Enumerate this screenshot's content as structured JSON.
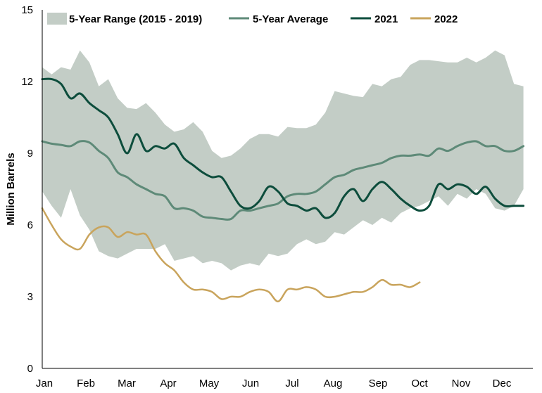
{
  "chart_data": {
    "type": "line",
    "title": "",
    "xlabel": "",
    "ylabel": "Million Barrels",
    "ylim": [
      0,
      15
    ],
    "yticks": [
      "0",
      "3",
      "6",
      "9",
      "12",
      "15"
    ],
    "x_tick_labels": [
      "Jan",
      "Feb",
      "Mar",
      "Apr",
      "May",
      "Jun",
      "Jul",
      "Aug",
      "Sep",
      "Oct",
      "Nov",
      "Dec"
    ],
    "x_unit": "week of year",
    "grid": false,
    "legend_position": "top",
    "colors": {
      "range": "#c3cdc6",
      "average": "#5e8a78",
      "y2021": "#0d4d3c",
      "y2022": "#c9a45c"
    },
    "range": {
      "name": "5-Year Range (2015 - 2019)",
      "x": [
        1,
        2,
        3,
        4,
        5,
        6,
        7,
        8,
        9,
        10,
        11,
        12,
        13,
        14,
        15,
        16,
        17,
        18,
        19,
        20,
        21,
        22,
        23,
        24,
        25,
        26,
        27,
        28,
        29,
        30,
        31,
        32,
        33,
        34,
        35,
        36,
        37,
        38,
        39,
        40,
        41,
        42,
        43,
        44,
        45,
        46,
        47,
        48,
        49,
        50,
        51,
        52
      ],
      "high": [
        12.6,
        12.3,
        12.6,
        12.5,
        13.3,
        12.8,
        11.8,
        12.1,
        11.3,
        10.9,
        10.85,
        11.1,
        10.7,
        10.2,
        9.9,
        10.0,
        10.3,
        9.9,
        9.1,
        8.8,
        8.9,
        9.2,
        9.6,
        9.8,
        9.8,
        9.7,
        10.1,
        10.05,
        10.05,
        10.2,
        10.7,
        11.6,
        11.5,
        11.4,
        11.35,
        11.9,
        11.8,
        12.1,
        12.2,
        12.7,
        12.9,
        12.9,
        12.85,
        12.8,
        12.8,
        13.0,
        12.8,
        13.0,
        13.3,
        13.1,
        11.9,
        11.8
      ],
      "low": [
        7.4,
        6.8,
        6.3,
        7.5,
        6.4,
        5.8,
        4.9,
        4.7,
        4.6,
        4.8,
        5.0,
        5.0,
        5.0,
        5.2,
        4.5,
        4.6,
        4.7,
        4.4,
        4.5,
        4.4,
        4.1,
        4.3,
        4.4,
        4.3,
        4.8,
        4.7,
        4.8,
        5.2,
        5.4,
        5.2,
        5.3,
        5.7,
        5.6,
        5.9,
        6.2,
        6.0,
        6.3,
        6.1,
        6.5,
        6.7,
        6.8,
        7.0,
        7.2,
        6.8,
        7.3,
        7.1,
        7.5,
        7.3,
        6.7,
        6.6,
        6.8,
        7.5
      ]
    },
    "series": [
      {
        "name": "5-Year Average",
        "x": [
          1,
          2,
          3,
          4,
          5,
          6,
          7,
          8,
          9,
          10,
          11,
          12,
          13,
          14,
          15,
          16,
          17,
          18,
          19,
          20,
          21,
          22,
          23,
          24,
          25,
          26,
          27,
          28,
          29,
          30,
          31,
          32,
          33,
          34,
          35,
          36,
          37,
          38,
          39,
          40,
          41,
          42,
          43,
          44,
          45,
          46,
          47,
          48,
          49,
          50,
          51,
          52
        ],
        "values": [
          9.5,
          9.4,
          9.35,
          9.3,
          9.5,
          9.45,
          9.1,
          8.8,
          8.2,
          8.0,
          7.7,
          7.5,
          7.3,
          7.2,
          6.7,
          6.7,
          6.6,
          6.35,
          6.3,
          6.25,
          6.25,
          6.6,
          6.6,
          6.7,
          6.8,
          6.9,
          7.2,
          7.3,
          7.3,
          7.4,
          7.7,
          8.0,
          8.1,
          8.3,
          8.4,
          8.5,
          8.6,
          8.8,
          8.9,
          8.9,
          8.95,
          8.9,
          9.2,
          9.1,
          9.3,
          9.45,
          9.5,
          9.3,
          9.3,
          9.1,
          9.1,
          9.3
        ]
      },
      {
        "name": "2021",
        "x": [
          1,
          2,
          3,
          4,
          5,
          6,
          7,
          8,
          9,
          10,
          11,
          12,
          13,
          14,
          15,
          16,
          17,
          18,
          19,
          20,
          21,
          22,
          23,
          24,
          25,
          26,
          27,
          28,
          29,
          30,
          31,
          32,
          33,
          34,
          35,
          36,
          37,
          38,
          39,
          40,
          41,
          42,
          43,
          44,
          45,
          46,
          47,
          48,
          49,
          50,
          51,
          52
        ],
        "values": [
          12.1,
          12.1,
          11.9,
          11.3,
          11.5,
          11.1,
          10.8,
          10.5,
          9.8,
          9.0,
          9.8,
          9.1,
          9.3,
          9.2,
          9.4,
          8.8,
          8.5,
          8.2,
          8.0,
          8.0,
          7.4,
          6.8,
          6.7,
          7.0,
          7.6,
          7.4,
          6.9,
          6.8,
          6.6,
          6.7,
          6.3,
          6.5,
          7.2,
          7.5,
          7.0,
          7.5,
          7.8,
          7.5,
          7.1,
          6.8,
          6.6,
          6.8,
          7.7,
          7.5,
          7.7,
          7.6,
          7.3,
          7.6,
          7.1,
          6.8,
          6.8,
          6.8
        ]
      },
      {
        "name": "2022",
        "x": [
          1,
          2,
          3,
          4,
          5,
          6,
          7,
          8,
          9,
          10,
          11,
          12,
          13,
          14,
          15,
          16,
          17,
          18,
          19,
          20,
          21,
          22,
          23,
          24,
          25,
          26,
          27,
          28,
          29,
          30,
          31,
          32,
          33,
          34,
          35,
          36,
          37,
          38,
          39,
          40,
          41
        ],
        "values": [
          6.7,
          6.0,
          5.4,
          5.1,
          5.0,
          5.6,
          5.9,
          5.9,
          5.5,
          5.7,
          5.6,
          5.6,
          4.9,
          4.4,
          4.1,
          3.6,
          3.3,
          3.3,
          3.2,
          2.9,
          3.0,
          3.0,
          3.2,
          3.3,
          3.2,
          2.8,
          3.3,
          3.3,
          3.4,
          3.3,
          3.0,
          3.0,
          3.1,
          3.2,
          3.2,
          3.4,
          3.7,
          3.5,
          3.5,
          3.4,
          3.6
        ]
      }
    ]
  }
}
